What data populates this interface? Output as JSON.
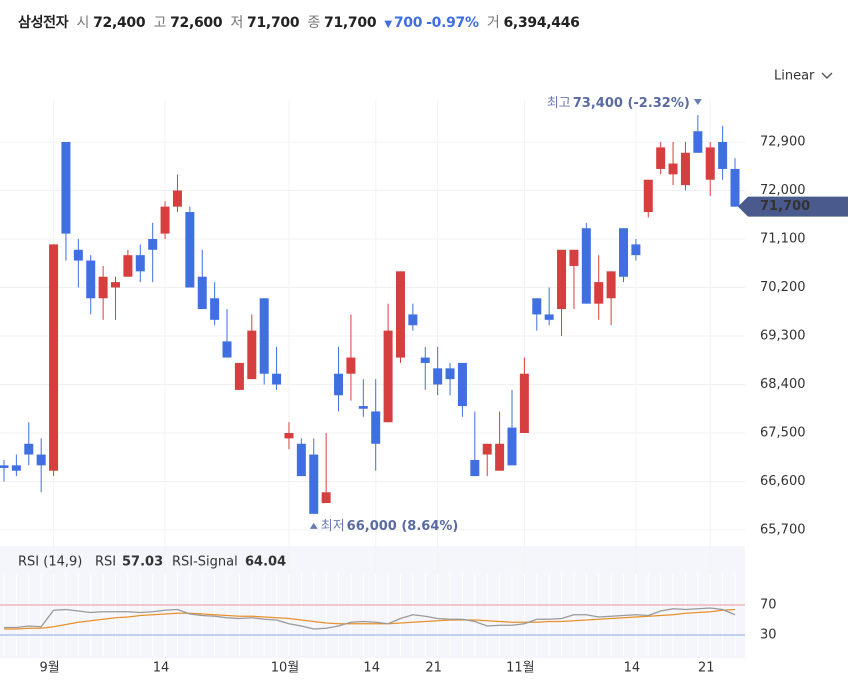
{
  "header": {
    "name": "삼성전자",
    "open_label": "시",
    "open": "72,400",
    "high_label": "고",
    "high": "72,600",
    "low_label": "저",
    "low": "71,700",
    "close_label": "종",
    "close": "71,700",
    "change": "700",
    "change_pct": "-0.97%",
    "volume_label": "거",
    "volume": "6,394,446",
    "scale": "Linear"
  },
  "chart_data": [
    {
      "type": "candlestick",
      "up_color": "#d63f3f",
      "down_color": "#3f6fe0",
      "categories": [
        null,
        null,
        null,
        null,
        "9월",
        null,
        null,
        null,
        null,
        null,
        null,
        null,
        null,
        "14",
        null,
        null,
        null,
        null,
        null,
        null,
        null,
        null,
        null,
        "10월",
        null,
        null,
        null,
        null,
        null,
        null,
        "14",
        null,
        null,
        null,
        null,
        "21",
        null,
        null,
        null,
        null,
        null,
        null,
        "11월",
        null,
        null,
        null,
        null,
        null,
        null,
        null,
        null,
        "14",
        null,
        null,
        null,
        null,
        null,
        "21",
        null,
        null
      ],
      "open": [
        66900,
        66900,
        67300,
        67100,
        66800,
        72900,
        70900,
        70700,
        70000,
        70200,
        70400,
        70800,
        71100,
        71200,
        71700,
        71600,
        70400,
        70000,
        69200,
        68300,
        68500,
        70000,
        68600,
        67400,
        67300,
        67100,
        66200,
        68600,
        68600,
        68000,
        67900,
        67700,
        68900,
        69700,
        68900,
        68700,
        68700,
        68800,
        67000,
        67100,
        66800,
        67600,
        67500,
        70000,
        69700,
        69800,
        70600,
        71300,
        69900,
        70000,
        71300,
        71000,
        71600,
        72400,
        72300,
        72100,
        73100,
        72200,
        72900,
        72400
      ],
      "high": [
        67000,
        67100,
        67700,
        67400,
        71000,
        72900,
        71100,
        70800,
        70600,
        70400,
        70900,
        71000,
        71400,
        71800,
        72300,
        71700,
        70900,
        70300,
        69800,
        68800,
        69700,
        70000,
        69100,
        67700,
        67400,
        67400,
        67500,
        69100,
        69700,
        68500,
        68500,
        69900,
        70500,
        69900,
        69100,
        69100,
        68800,
        68800,
        67900,
        67300,
        67900,
        68300,
        68900,
        70000,
        70200,
        70900,
        70900,
        71400,
        70800,
        70500,
        71300,
        71100,
        72200,
        72900,
        72900,
        72900,
        73400,
        72900,
        73200,
        72600
      ],
      "low": [
        66600,
        66700,
        66900,
        66400,
        66700,
        70700,
        70200,
        69700,
        69600,
        69600,
        70400,
        70300,
        70300,
        71100,
        71600,
        70200,
        69800,
        69500,
        68900,
        68300,
        68500,
        68400,
        68300,
        67200,
        66700,
        66000,
        66200,
        67900,
        68100,
        67800,
        66800,
        67700,
        68800,
        69400,
        68300,
        68200,
        68200,
        67800,
        66700,
        66700,
        66800,
        66900,
        67500,
        69400,
        69500,
        69300,
        69800,
        69900,
        69600,
        69500,
        70300,
        70700,
        71500,
        72300,
        72100,
        72000,
        72700,
        71900,
        72200,
        71700
      ],
      "close": [
        66850,
        66800,
        67100,
        66900,
        71000,
        71200,
        70700,
        70000,
        70400,
        70300,
        70800,
        70500,
        70900,
        71700,
        72000,
        70200,
        69800,
        69600,
        68900,
        68800,
        69400,
        68600,
        68400,
        67500,
        66700,
        66000,
        66400,
        68200,
        68900,
        67950,
        67300,
        69400,
        70500,
        69500,
        68800,
        68400,
        68500,
        68000,
        66700,
        67300,
        67300,
        66900,
        68600,
        69700,
        69600,
        70900,
        70900,
        69900,
        70300,
        70500,
        70400,
        70800,
        72200,
        72800,
        72500,
        72700,
        72700,
        72800,
        72400,
        71700
      ],
      "ylim": [
        65400,
        73900
      ],
      "yticks": [
        {
          "value": 65700,
          "label": "65,700"
        },
        {
          "value": 66600,
          "label": "66,600"
        },
        {
          "value": 67500,
          "label": "67,500"
        },
        {
          "value": 68400,
          "label": "68,400"
        },
        {
          "value": 69300,
          "label": "69,300"
        },
        {
          "value": 70200,
          "label": "70,200"
        },
        {
          "value": 71100,
          "label": "71,100"
        },
        {
          "value": 72000,
          "label": "72,000"
        },
        {
          "value": 72900,
          "label": "72,900"
        }
      ],
      "grid": true,
      "current_price": {
        "value": 71700,
        "label": "71,700",
        "color": "#4a5a8c"
      },
      "annotations": [
        {
          "kind": "high",
          "label": "최고",
          "value": 73400,
          "text": "73,400 (-2.32%)"
        },
        {
          "kind": "low",
          "label": "최저",
          "value": 66000,
          "text": "66,000 (8.64%)"
        }
      ]
    },
    {
      "type": "line",
      "title": "RSI (14,9)",
      "ylim": [
        0,
        100
      ],
      "yticks": [
        30,
        70
      ],
      "tick_colors": [
        "#8fa8e6",
        "#e89a9a"
      ],
      "series": [
        {
          "name": "RSI",
          "color": "#999999",
          "value_label": "57.03",
          "values": [
            40,
            40,
            42,
            41,
            63,
            64,
            62,
            60,
            61,
            61,
            61,
            60,
            61,
            63,
            64,
            58,
            56,
            55,
            53,
            52,
            53,
            51,
            50,
            45,
            42,
            38,
            39,
            42,
            47,
            48,
            47,
            45,
            52,
            57,
            55,
            52,
            51,
            51,
            48,
            42,
            43,
            43,
            45,
            51,
            51,
            52,
            57,
            57,
            54,
            55,
            56,
            57,
            56,
            62,
            65,
            64,
            65,
            66,
            64,
            57.03
          ]
        },
        {
          "name": "RSI-Signal",
          "color": "#e8912d",
          "value_label": "64.04",
          "values": [
            38,
            38,
            39,
            39,
            41,
            44,
            47,
            49,
            51,
            53,
            54,
            56,
            57,
            58,
            59,
            59,
            58,
            57,
            56,
            55,
            55,
            54,
            53,
            52,
            50,
            48,
            46,
            45,
            45,
            45,
            45,
            45,
            46,
            47,
            48,
            49,
            50,
            50,
            50,
            49,
            48,
            47,
            47,
            47,
            48,
            48,
            49,
            50,
            51,
            52,
            53,
            54,
            55,
            56,
            57,
            59,
            60,
            61,
            63,
            64.04
          ]
        }
      ]
    }
  ]
}
